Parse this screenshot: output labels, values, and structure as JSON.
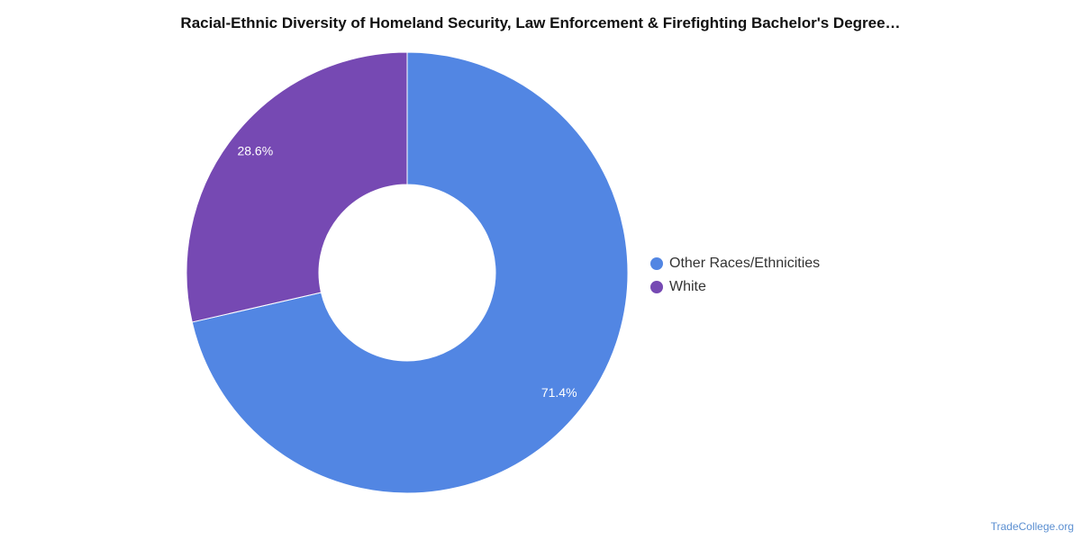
{
  "chart_data": {
    "type": "pie",
    "style": "donut",
    "title": "Racial-Ethnic Diversity of Homeland Security, Law Enforcement & Firefighting Bachelor's Degree…",
    "categories": [
      "Other Races/Ethnicities",
      "White"
    ],
    "values": [
      71.4,
      28.6
    ],
    "data_labels": [
      "71.4%",
      "28.6%"
    ],
    "colors": [
      "#5286e3",
      "#7649b3"
    ],
    "legend_placement": "right"
  },
  "watermark": "TradeCollege.org"
}
